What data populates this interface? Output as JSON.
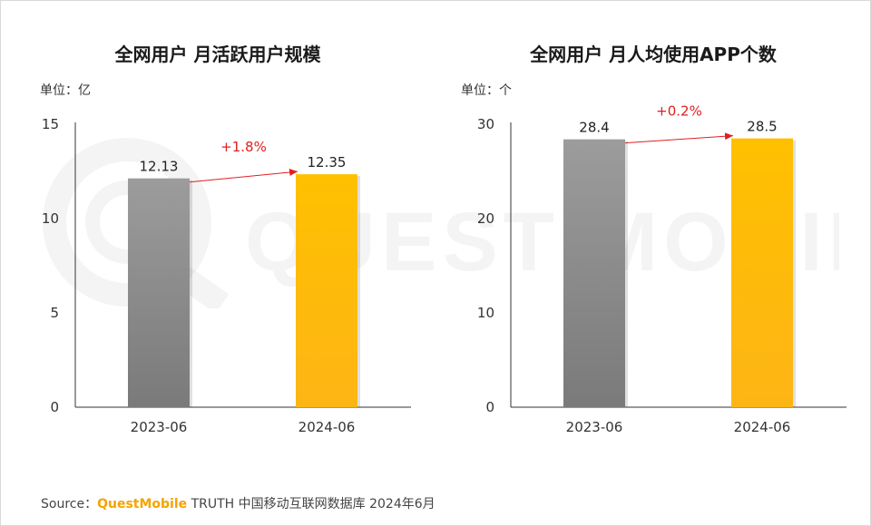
{
  "charts": [
    {
      "title": "全网用户 月活跃用户规模",
      "unit_label": "单位：亿",
      "growth_label": "+1.8%",
      "chart_data": {
        "type": "bar",
        "title": "全网用户 月活跃用户规模",
        "categories": [
          "2023-06",
          "2024-06"
        ],
        "series": [
          {
            "values": [
              12.13,
              12.35
            ]
          }
        ],
        "data_labels": [
          "12.13",
          "12.35"
        ],
        "ylim": [
          0,
          15
        ],
        "yticks": [
          0,
          5,
          10,
          15
        ],
        "bar_colors": [
          "#7a7a7a",
          "#ffc000"
        ],
        "annotation": "+1.8%",
        "grid": false
      }
    },
    {
      "title": "全网用户 月人均使用APP个数",
      "unit_label": "单位：个",
      "growth_label": "+0.2%",
      "chart_data": {
        "type": "bar",
        "title": "全网用户 月人均使用APP个数",
        "categories": [
          "2023-06",
          "2024-06"
        ],
        "series": [
          {
            "values": [
              28.4,
              28.5
            ]
          }
        ],
        "data_labels": [
          "28.4",
          "28.5"
        ],
        "ylim": [
          0,
          30
        ],
        "yticks": [
          0,
          10,
          20,
          30
        ],
        "bar_colors": [
          "#7a7a7a",
          "#ffc000"
        ],
        "annotation": "+0.2%",
        "grid": false
      }
    }
  ],
  "watermark_text": "QUEST MOBILE",
  "source": {
    "prefix": "Source：",
    "brand": "QuestMobile",
    "suffix": " TRUTH 中国移动互联网数据库 2024年6月"
  },
  "colors": {
    "accent_red": "#e02020",
    "brand_orange": "#f5a300"
  }
}
